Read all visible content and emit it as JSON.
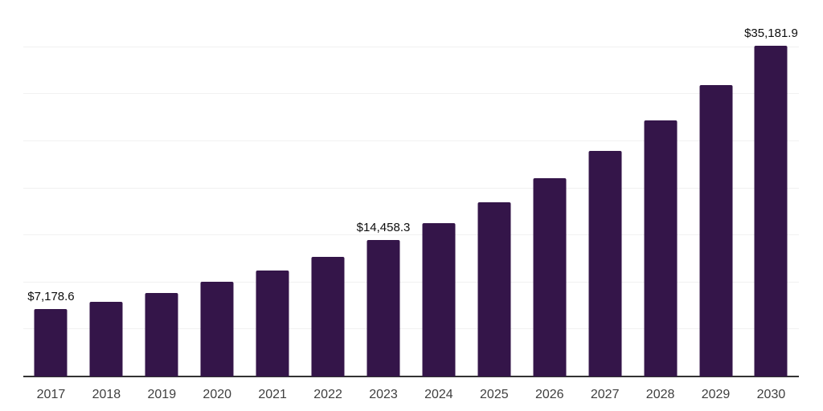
{
  "chart_data": {
    "type": "bar",
    "title": "",
    "xlabel": "",
    "ylabel": "",
    "categories": [
      "2017",
      "2018",
      "2019",
      "2020",
      "2021",
      "2022",
      "2023",
      "2024",
      "2025",
      "2026",
      "2027",
      "2028",
      "2029",
      "2030"
    ],
    "values": [
      7178.6,
      7940,
      8900,
      10040,
      11300,
      12720,
      14458.3,
      16310,
      18500,
      21060,
      23960,
      27200,
      30960,
      35181.9
    ],
    "value_labels": [
      "$7,178.6",
      "",
      "",
      "",
      "",
      "",
      "$14,458.3",
      "",
      "",
      "",
      "",
      "",
      "",
      "$35,181.9"
    ],
    "ylim": [
      0,
      40000
    ],
    "grid_step": 5000,
    "grid": "horizontal",
    "legend": "none",
    "colors": {
      "bar": "#341549",
      "axis_line": "#333333",
      "gridline": "#f1f1f1",
      "tick_label": "#3f3f3f",
      "value_label": "#0d0d0d",
      "background": "#ffffff"
    }
  }
}
